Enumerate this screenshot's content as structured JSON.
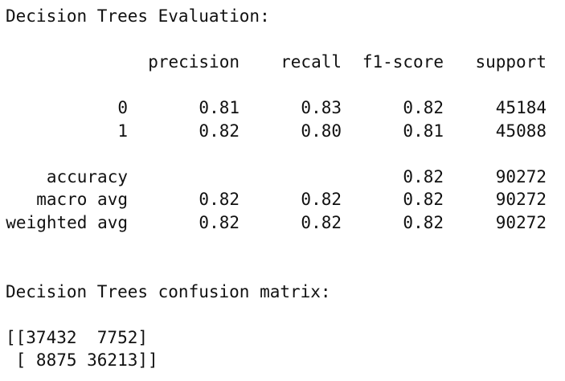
{
  "evaluation": {
    "heading": "Decision Trees Evaluation:",
    "headers": {
      "precision": "precision",
      "recall": "recall",
      "f1": "f1-score",
      "support": "support"
    },
    "rows": [
      {
        "label": "0",
        "precision": "0.81",
        "recall": "0.83",
        "f1": "0.82",
        "support": "45184"
      },
      {
        "label": "1",
        "precision": "0.82",
        "recall": "0.80",
        "f1": "0.81",
        "support": "45088"
      },
      {
        "label": "accuracy",
        "precision": "",
        "recall": "",
        "f1": "0.82",
        "support": "90272"
      },
      {
        "label": "macro avg",
        "precision": "0.82",
        "recall": "0.82",
        "f1": "0.82",
        "support": "90272"
      },
      {
        "label": "weighted avg",
        "precision": "0.82",
        "recall": "0.82",
        "f1": "0.82",
        "support": "90272"
      }
    ]
  },
  "confusion": {
    "heading": "Decision Trees confusion matrix:",
    "lines": [
      "[[37432  7752]",
      " [ 8875 36213]]"
    ]
  }
}
